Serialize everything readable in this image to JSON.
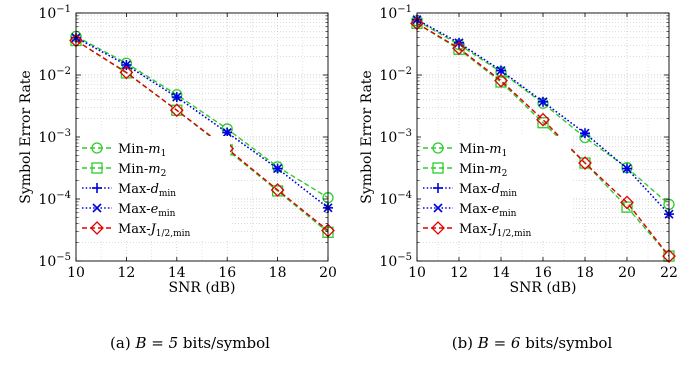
{
  "chart_data": [
    {
      "type": "line",
      "caption_label": "(a)",
      "caption_expr": "B = 5",
      "caption_unit": "bits/symbol",
      "xlabel": "SNR (dB)",
      "ylabel": "Symbol Error Rate",
      "yscale": "log",
      "xlim": [
        10,
        20
      ],
      "ylim": [
        1e-05,
        0.1
      ],
      "grid": true,
      "legend": "bottom-left",
      "x_ticks": [
        10,
        12,
        14,
        16,
        18,
        20
      ],
      "series": [
        {
          "name": "Min-m1",
          "color": "#2ecc2e",
          "dash": "dashed",
          "marker": "circle",
          "x": [
            10,
            12,
            14,
            16,
            18,
            20
          ],
          "y": [
            0.042,
            0.0155,
            0.0048,
            0.00135,
            0.00033,
            0.000105
          ]
        },
        {
          "name": "Min-m2",
          "color": "#2ecc2e",
          "dash": "dashed",
          "marker": "square",
          "x": [
            10,
            12,
            14,
            16,
            18,
            20
          ],
          "y": [
            0.036,
            0.0108,
            0.0027,
            0.00062,
            0.000135,
            2.9e-05
          ]
        },
        {
          "name": "Max-dmin",
          "color": "#0000e0",
          "dash": "dotted",
          "marker": "plus",
          "x": [
            10,
            12,
            14,
            16,
            18,
            20
          ],
          "y": [
            0.04,
            0.0145,
            0.0044,
            0.00118,
            0.00031,
            7.2e-05
          ]
        },
        {
          "name": "Max-emin",
          "color": "#0000e0",
          "dash": "dotted",
          "marker": "x",
          "x": [
            10,
            12,
            14,
            16,
            18,
            20
          ],
          "y": [
            0.04,
            0.0145,
            0.0044,
            0.00118,
            0.00031,
            7.2e-05
          ]
        },
        {
          "name": "Max-J1/2,min",
          "color": "#e00000",
          "dash": "dashed",
          "marker": "diamond",
          "x": [
            10,
            12,
            14,
            16,
            18,
            20
          ],
          "y": [
            0.036,
            0.011,
            0.0027,
            0.00065,
            0.00014,
            3.1e-05
          ]
        }
      ]
    },
    {
      "type": "line",
      "caption_label": "(b)",
      "caption_expr": "B = 6",
      "caption_unit": "bits/symbol",
      "xlabel": "SNR (dB)",
      "ylabel": "Symbol Error Rate",
      "yscale": "log",
      "xlim": [
        10,
        22
      ],
      "ylim": [
        1e-05,
        0.1
      ],
      "grid": true,
      "legend": "bottom-left",
      "x_ticks": [
        10,
        12,
        14,
        16,
        18,
        20,
        22
      ],
      "series": [
        {
          "name": "Min-m1",
          "color": "#2ecc2e",
          "dash": "dashed",
          "marker": "circle",
          "x": [
            10,
            12,
            14,
            16,
            18,
            20,
            22
          ],
          "y": [
            0.075,
            0.031,
            0.0112,
            0.0035,
            0.00098,
            0.00032,
            8.2e-05
          ]
        },
        {
          "name": "Min-m2",
          "color": "#2ecc2e",
          "dash": "dashed",
          "marker": "square",
          "x": [
            10,
            12,
            14,
            16,
            18,
            20,
            22
          ],
          "y": [
            0.068,
            0.026,
            0.0077,
            0.0017,
            0.00038,
            7.4e-05,
            1.2e-05
          ]
        },
        {
          "name": "Max-dmin",
          "color": "#0000e0",
          "dash": "dotted",
          "marker": "plus",
          "x": [
            10,
            12,
            14,
            16,
            18,
            20,
            22
          ],
          "y": [
            0.078,
            0.033,
            0.0118,
            0.0037,
            0.00115,
            0.00031,
            5.7e-05
          ]
        },
        {
          "name": "Max-emin",
          "color": "#0000e0",
          "dash": "dotted",
          "marker": "x",
          "x": [
            10,
            12,
            14,
            16,
            18,
            20,
            22
          ],
          "y": [
            0.078,
            0.033,
            0.0118,
            0.0037,
            0.00115,
            0.00031,
            5.7e-05
          ]
        },
        {
          "name": "Max-J1/2,min",
          "color": "#e00000",
          "dash": "dashed",
          "marker": "diamond",
          "x": [
            10,
            12,
            14,
            16,
            18,
            20,
            22
          ],
          "y": [
            0.068,
            0.027,
            0.0081,
            0.0019,
            0.00038,
            8.8e-05,
            1.2e-05
          ]
        }
      ]
    }
  ]
}
